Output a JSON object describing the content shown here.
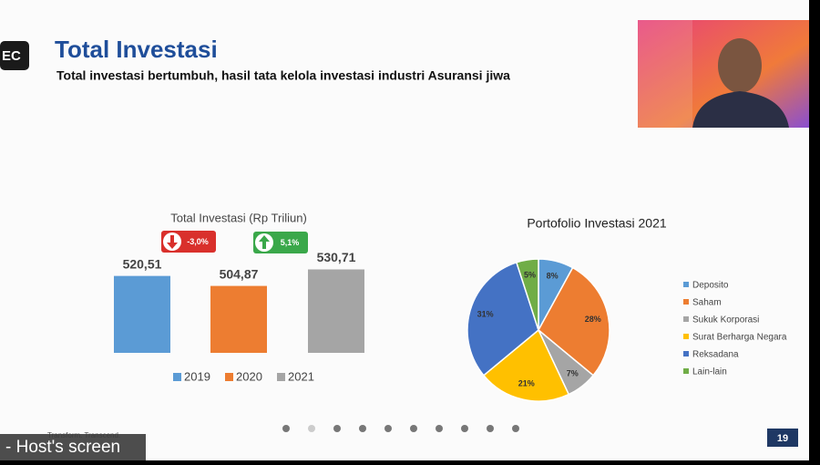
{
  "slide": {
    "title": "Total Investasi",
    "subtitle": "Total investasi bertumbuh, hasil tata kelola investasi industri Asuransi jiwa",
    "footer": "Transform. Transcend.",
    "page_number": "19"
  },
  "overlay": {
    "badge": "EC",
    "host_label": "- Host's screen"
  },
  "chart_data": [
    {
      "type": "bar",
      "title": "Total Investasi (Rp Triliun)",
      "categories": [
        "2019",
        "2020",
        "2021"
      ],
      "values": [
        520.51,
        504.87,
        530.71
      ],
      "value_labels": [
        "520,51",
        "504,87",
        "530,71"
      ],
      "colors": [
        "#5b9bd5",
        "#ed7d31",
        "#a5a5a5"
      ],
      "ylim": [
        400,
        540
      ],
      "annotations": [
        "-3,0%",
        "5,1%"
      ]
    },
    {
      "type": "pie",
      "title": "Portofolio Investasi 2021",
      "categories": [
        "Deposito",
        "Saham",
        "Sukuk Korporasi",
        "Surat Berharga Negara",
        "Reksadana",
        "Lain-lain"
      ],
      "values": [
        8,
        28,
        7,
        21,
        31,
        5
      ],
      "value_labels": [
        "8%",
        "28%",
        "7%",
        "21%",
        "31%",
        "5%"
      ],
      "colors": [
        "#5b9bd5",
        "#ed7d31",
        "#a5a5a5",
        "#ffc000",
        "#4472c4",
        "#70ad47"
      ]
    }
  ]
}
